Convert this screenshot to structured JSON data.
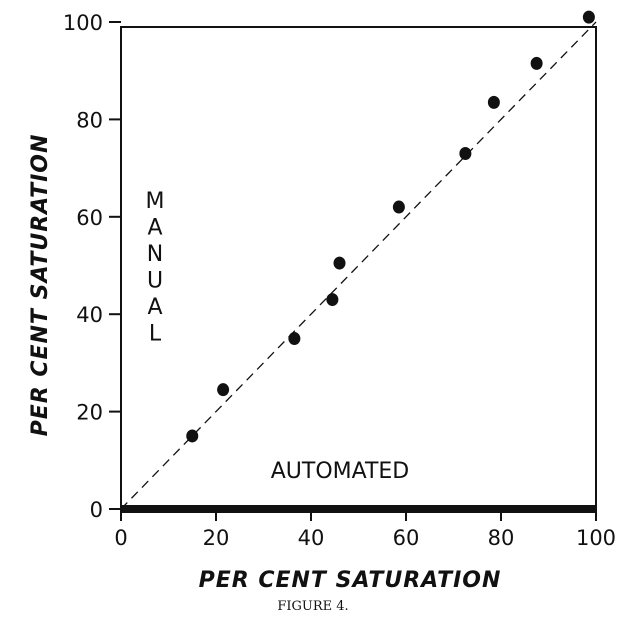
{
  "chart_data": {
    "type": "scatter",
    "xlabel": "PER CENT SATURATION",
    "ylabel": "PER CENT SATURATION",
    "xlim": [
      0,
      100
    ],
    "ylim": [
      0,
      100
    ],
    "xticks": [
      "0",
      "20",
      "40",
      "60",
      "80",
      "100"
    ],
    "yticks": [
      "0",
      "20",
      "40",
      "60",
      "80",
      "100"
    ],
    "annotations": {
      "vertical_label": "MANUAL",
      "horizontal_label": "AUTOMATED"
    },
    "reference_line": {
      "from": [
        0,
        0
      ],
      "to": [
        100,
        100
      ],
      "style": "dashed"
    },
    "grid": false,
    "legend": "none",
    "series": [
      {
        "points": [
          {
            "x": 15,
            "y": 15
          },
          {
            "x": 21.5,
            "y": 24.5
          },
          {
            "x": 36.5,
            "y": 35
          },
          {
            "x": 44.5,
            "y": 43
          },
          {
            "x": 46,
            "y": 50.5
          },
          {
            "x": 58.5,
            "y": 62
          },
          {
            "x": 72.5,
            "y": 73
          },
          {
            "x": 78.5,
            "y": 83.5
          },
          {
            "x": 87.5,
            "y": 91.5
          },
          {
            "x": 98.5,
            "y": 101
          }
        ]
      }
    ]
  },
  "caption": "FIGURE 4."
}
